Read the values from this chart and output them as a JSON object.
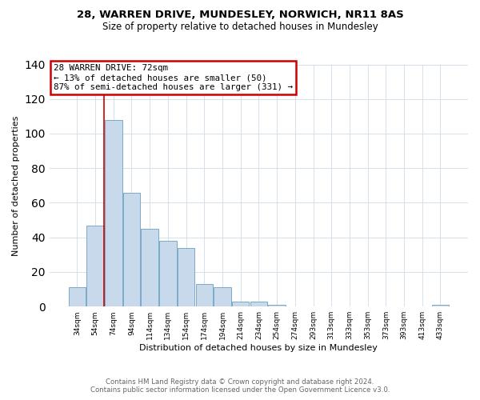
{
  "title_line1": "28, WARREN DRIVE, MUNDESLEY, NORWICH, NR11 8AS",
  "title_line2": "Size of property relative to detached houses in Mundesley",
  "xlabel": "Distribution of detached houses by size in Mundesley",
  "ylabel": "Number of detached properties",
  "bar_labels": [
    "34sqm",
    "54sqm",
    "74sqm",
    "94sqm",
    "114sqm",
    "134sqm",
    "154sqm",
    "174sqm",
    "194sqm",
    "214sqm",
    "234sqm",
    "254sqm",
    "274sqm",
    "293sqm",
    "313sqm",
    "333sqm",
    "353sqm",
    "373sqm",
    "393sqm",
    "413sqm",
    "433sqm"
  ],
  "bar_values": [
    11,
    47,
    108,
    66,
    45,
    38,
    34,
    13,
    11,
    3,
    3,
    1,
    0,
    0,
    0,
    0,
    0,
    0,
    0,
    0,
    1
  ],
  "bar_color": "#c9d9ec",
  "bar_edge_color": "#7aaac8",
  "ylim": [
    0,
    140
  ],
  "yticks": [
    0,
    20,
    40,
    60,
    80,
    100,
    120,
    140
  ],
  "vline_color": "#cc0000",
  "annotation_title": "28 WARREN DRIVE: 72sqm",
  "annotation_line1": "← 13% of detached houses are smaller (50)",
  "annotation_line2": "87% of semi-detached houses are larger (331) →",
  "annotation_box_color": "#cc0000",
  "footer_line1": "Contains HM Land Registry data © Crown copyright and database right 2024.",
  "footer_line2": "Contains public sector information licensed under the Open Government Licence v3.0.",
  "background_color": "#ffffff",
  "plot_bg_color": "#ffffff",
  "grid_color": "#d0dce8"
}
